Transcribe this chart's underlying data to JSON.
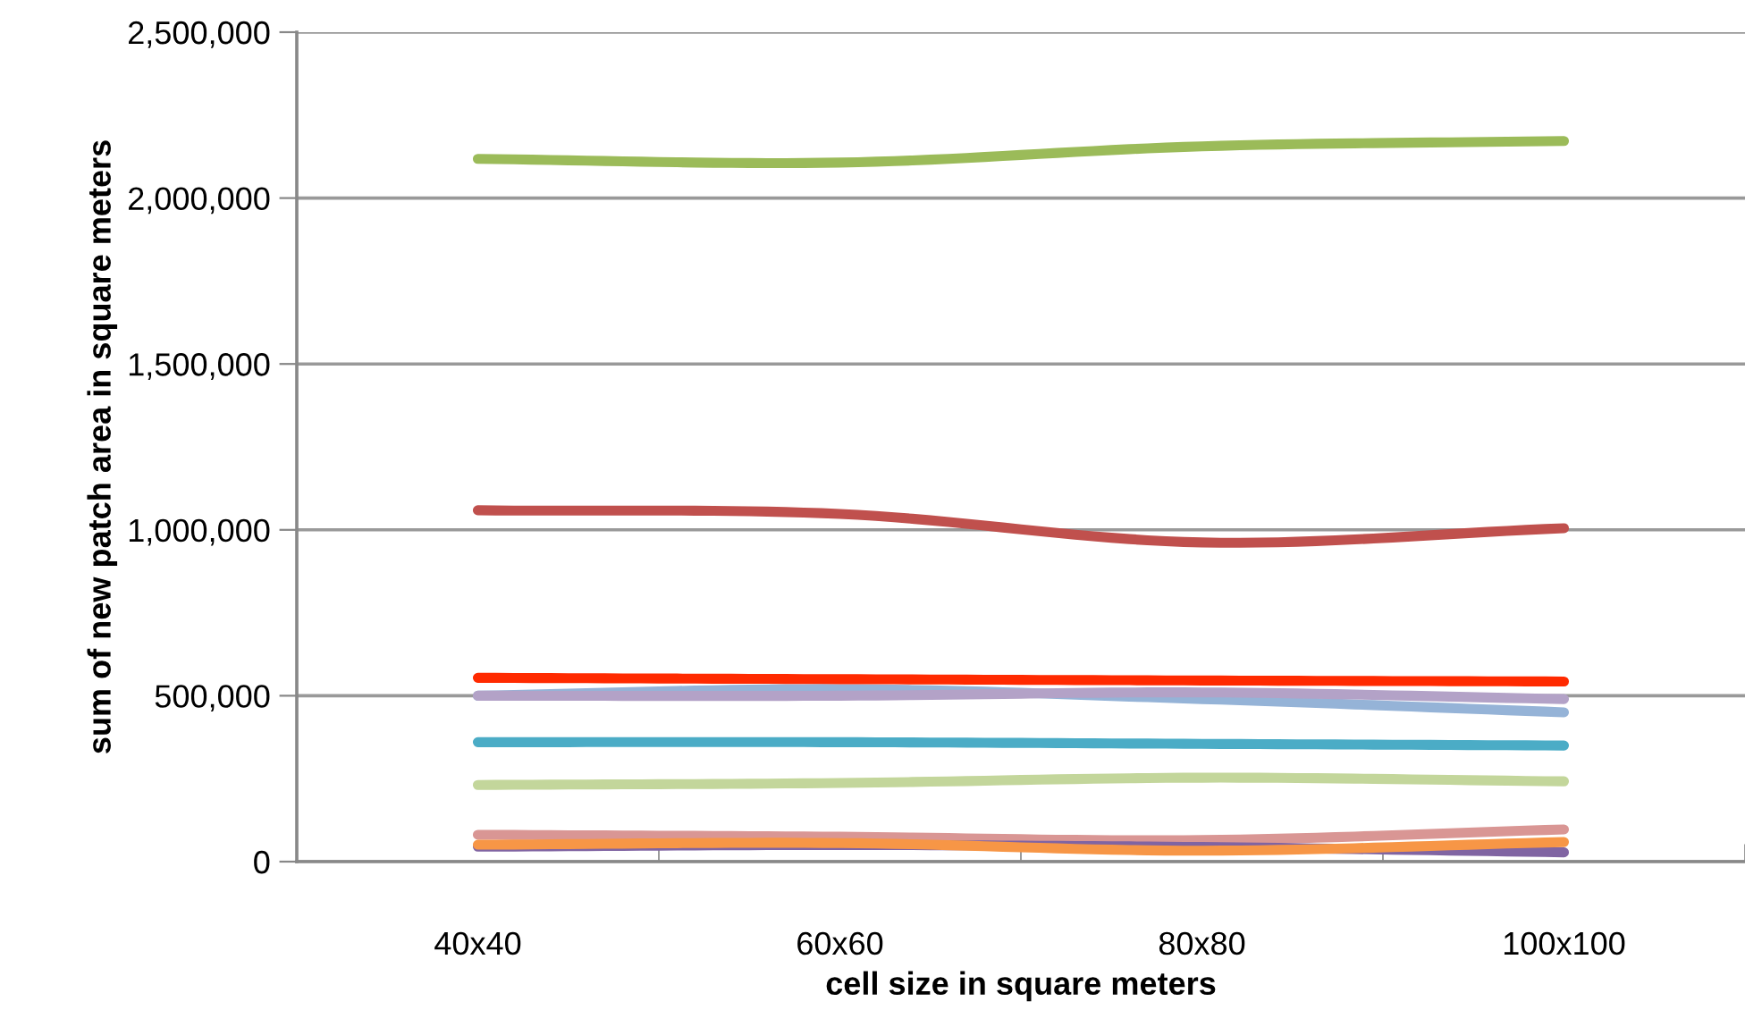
{
  "chart_data": {
    "type": "line",
    "xlabel": "cell size in square meters",
    "ylabel": "sum of new patch area in square meters",
    "categories": [
      "40x40",
      "60x60",
      "80x80",
      "100x100"
    ],
    "ylim": [
      0,
      2500000
    ],
    "yticks": [
      0,
      {
        "value": 500000,
        "label": "500,000"
      },
      {
        "value": 1000000,
        "label": "1,000,000"
      },
      {
        "value": 1500000,
        "label": "1,500,000"
      },
      {
        "value": 2000000,
        "label": "2,000,000"
      },
      {
        "value": 2500000,
        "label": "2,500,000"
      }
    ],
    "grid": "y",
    "marker": "none",
    "line_style": "solid",
    "series": [
      {
        "color": "#9bbb59",
        "values": [
          2118000,
          2107000,
          2156000,
          2172000
        ]
      },
      {
        "color": "#c0504d",
        "values": [
          1059000,
          1048000,
          962000,
          1005000
        ]
      },
      {
        "color": "#95b3d7",
        "values": [
          500000,
          520000,
          490000,
          450000
        ]
      },
      {
        "color": "#b3a2c7",
        "values": [
          500000,
          500000,
          510000,
          490000
        ]
      },
      {
        "color": "#ff2a00",
        "values": [
          554000,
          550000,
          546000,
          543000
        ]
      },
      {
        "color": "#4bacc6",
        "values": [
          360000,
          360000,
          355000,
          350000
        ]
      },
      {
        "color": "#c3d69b",
        "values": [
          231000,
          237000,
          253000,
          242000
        ]
      },
      {
        "color": "#d99694",
        "values": [
          81000,
          75000,
          65000,
          97000
        ]
      },
      {
        "color": "#8064a2",
        "values": [
          45000,
          50000,
          44000,
          28000
        ]
      },
      {
        "color": "#f79646",
        "values": [
          51000,
          56000,
          33000,
          59000
        ]
      }
    ]
  }
}
